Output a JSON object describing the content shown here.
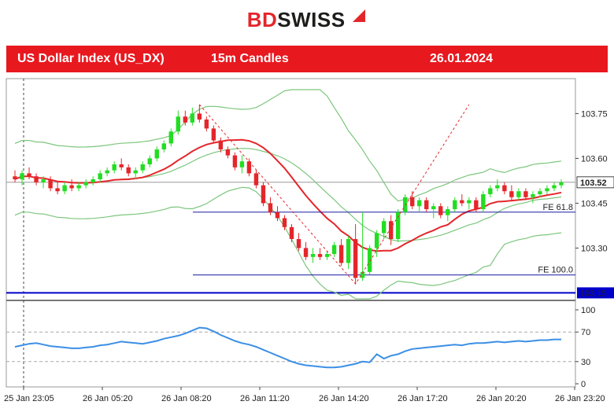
{
  "brand": {
    "name_part1": "BD",
    "name_part2": "SWISS",
    "logo_icon": "triangle-arrow-icon"
  },
  "header": {
    "instrument": "US Dollar Index (US_DX)",
    "timeframe": "15m Candles",
    "date": "26.01.2024",
    "bg_color": "#e8181f"
  },
  "chart_data": [
    {
      "type": "candlestick",
      "title": "",
      "ylim": [
        103.13,
        103.83
      ],
      "y_ticks": [
        "103.75",
        "103.60",
        "103.45",
        "103.30"
      ],
      "current_price_label": "103.52",
      "current_price": 103.52,
      "line_label": "103.15",
      "line_price": 103.15,
      "fib_levels": [
        {
          "label": "FE 61.8",
          "price": 103.42
        },
        {
          "label": "FE 100.0",
          "price": 103.21
        }
      ],
      "x_ticks": [
        "25 Jan 23:05",
        "26 Jan 05:20",
        "26 Jan 08:20",
        "26 Jan 11:20",
        "26 Jan 14:20",
        "26 Jan 17:20",
        "26 Jan 20:20",
        "26 Jan 23:20"
      ],
      "candles": [
        [
          103.54,
          103.56,
          103.52,
          103.53
        ],
        [
          103.53,
          103.56,
          103.51,
          103.55
        ],
        [
          103.55,
          103.57,
          103.53,
          103.54
        ],
        [
          103.54,
          103.55,
          103.51,
          103.52
        ],
        [
          103.52,
          103.54,
          103.5,
          103.53
        ],
        [
          103.53,
          103.54,
          103.49,
          103.5
        ],
        [
          103.5,
          103.52,
          103.48,
          103.49
        ],
        [
          103.49,
          103.52,
          103.48,
          103.51
        ],
        [
          103.51,
          103.53,
          103.49,
          103.5
        ],
        [
          103.5,
          103.52,
          103.49,
          103.51
        ],
        [
          103.51,
          103.53,
          103.5,
          103.52
        ],
        [
          103.52,
          103.54,
          103.51,
          103.53
        ],
        [
          103.53,
          103.56,
          103.52,
          103.55
        ],
        [
          103.55,
          103.57,
          103.54,
          103.56
        ],
        [
          103.56,
          103.59,
          103.55,
          103.58
        ],
        [
          103.58,
          103.6,
          103.56,
          103.57
        ],
        [
          103.57,
          103.58,
          103.54,
          103.55
        ],
        [
          103.55,
          103.57,
          103.53,
          103.56
        ],
        [
          103.56,
          103.59,
          103.55,
          103.58
        ],
        [
          103.58,
          103.61,
          103.57,
          103.6
        ],
        [
          103.6,
          103.64,
          103.59,
          103.63
        ],
        [
          103.63,
          103.66,
          103.62,
          103.65
        ],
        [
          103.65,
          103.7,
          103.64,
          103.69
        ],
        [
          103.69,
          103.76,
          103.68,
          103.74
        ],
        [
          103.74,
          103.76,
          103.71,
          103.72
        ],
        [
          103.72,
          103.77,
          103.71,
          103.75
        ],
        [
          103.75,
          103.78,
          103.72,
          103.73
        ],
        [
          103.73,
          103.74,
          103.69,
          103.7
        ],
        [
          103.7,
          103.71,
          103.65,
          103.66
        ],
        [
          103.66,
          103.67,
          103.62,
          103.63
        ],
        [
          103.63,
          103.64,
          103.6,
          103.61
        ],
        [
          103.61,
          103.62,
          103.56,
          103.57
        ],
        [
          103.57,
          103.61,
          103.55,
          103.59
        ],
        [
          103.59,
          103.6,
          103.54,
          103.55
        ],
        [
          103.55,
          103.56,
          103.5,
          103.51
        ],
        [
          103.51,
          103.52,
          103.44,
          103.45
        ],
        [
          103.45,
          103.47,
          103.41,
          103.42
        ],
        [
          103.42,
          103.44,
          103.39,
          103.4
        ],
        [
          103.4,
          103.41,
          103.36,
          103.37
        ],
        [
          103.37,
          103.38,
          103.32,
          103.33
        ],
        [
          103.33,
          103.35,
          103.29,
          103.3
        ],
        [
          103.3,
          103.32,
          103.26,
          103.27
        ],
        [
          103.27,
          103.3,
          103.25,
          103.28
        ],
        [
          103.28,
          103.3,
          103.26,
          103.27
        ],
        [
          103.27,
          103.29,
          103.26,
          103.28
        ],
        [
          103.28,
          103.32,
          103.27,
          103.31
        ],
        [
          103.31,
          103.33,
          103.24,
          103.25
        ],
        [
          103.25,
          103.34,
          103.23,
          103.33
        ],
        [
          103.33,
          103.38,
          103.18,
          103.2
        ],
        [
          103.2,
          103.42,
          103.19,
          103.22
        ],
        [
          103.22,
          103.31,
          103.21,
          103.3
        ],
        [
          103.3,
          103.36,
          103.27,
          103.35
        ],
        [
          103.35,
          103.4,
          103.33,
          103.39
        ],
        [
          103.39,
          103.41,
          103.31,
          103.33
        ],
        [
          103.33,
          103.43,
          103.32,
          103.42
        ],
        [
          103.42,
          103.48,
          103.41,
          103.47
        ],
        [
          103.47,
          103.49,
          103.43,
          103.44
        ],
        [
          103.44,
          103.47,
          103.42,
          103.46
        ],
        [
          103.46,
          103.47,
          103.42,
          103.43
        ],
        [
          103.43,
          103.45,
          103.4,
          103.44
        ],
        [
          103.44,
          103.45,
          103.4,
          103.41
        ],
        [
          103.41,
          103.44,
          103.39,
          103.43
        ],
        [
          103.43,
          103.47,
          103.42,
          103.46
        ],
        [
          103.46,
          103.48,
          103.44,
          103.45
        ],
        [
          103.45,
          103.47,
          103.43,
          103.46
        ],
        [
          103.46,
          103.47,
          103.42,
          103.43
        ],
        [
          103.43,
          103.49,
          103.42,
          103.48
        ],
        [
          103.48,
          103.51,
          103.47,
          103.5
        ],
        [
          103.5,
          103.53,
          103.49,
          103.51
        ],
        [
          103.51,
          103.52,
          103.48,
          103.49
        ],
        [
          103.49,
          103.51,
          103.46,
          103.47
        ],
        [
          103.47,
          103.5,
          103.46,
          103.49
        ],
        [
          103.49,
          103.5,
          103.46,
          103.47
        ],
        [
          103.47,
          103.49,
          103.45,
          103.48
        ],
        [
          103.48,
          103.5,
          103.47,
          103.49
        ],
        [
          103.49,
          103.51,
          103.48,
          103.5
        ],
        [
          103.5,
          103.52,
          103.49,
          103.51
        ],
        [
          103.51,
          103.53,
          103.5,
          103.52
        ]
      ],
      "colors": {
        "bull": "#22dd22",
        "bear": "#e4262b",
        "ma": "#e4262b",
        "bands": "#7cc67c",
        "fib": "#1a1aa0",
        "h_line": "#0000cc",
        "rsi": "#3b8fe6",
        "zigzag": "#e4262b"
      }
    },
    {
      "type": "line",
      "title": "",
      "ylim": [
        0,
        100
      ],
      "y_ticks": [
        "100",
        "70",
        "30",
        "0"
      ],
      "values": [
        50,
        52,
        54,
        55,
        53,
        51,
        50,
        49,
        48,
        48,
        49,
        50,
        52,
        53,
        55,
        57,
        56,
        55,
        54,
        56,
        58,
        61,
        63,
        65,
        68,
        72,
        76,
        75,
        71,
        66,
        62,
        58,
        55,
        53,
        50,
        46,
        42,
        38,
        34,
        30,
        27,
        25,
        24,
        23,
        22,
        22,
        23,
        25,
        27,
        30,
        29,
        40,
        34,
        38,
        40,
        44,
        47,
        48,
        49,
        50,
        51,
        52,
        53,
        52,
        54,
        55,
        55,
        56,
        57,
        56,
        57,
        58,
        57,
        58,
        59,
        59,
        60,
        60
      ]
    }
  ]
}
